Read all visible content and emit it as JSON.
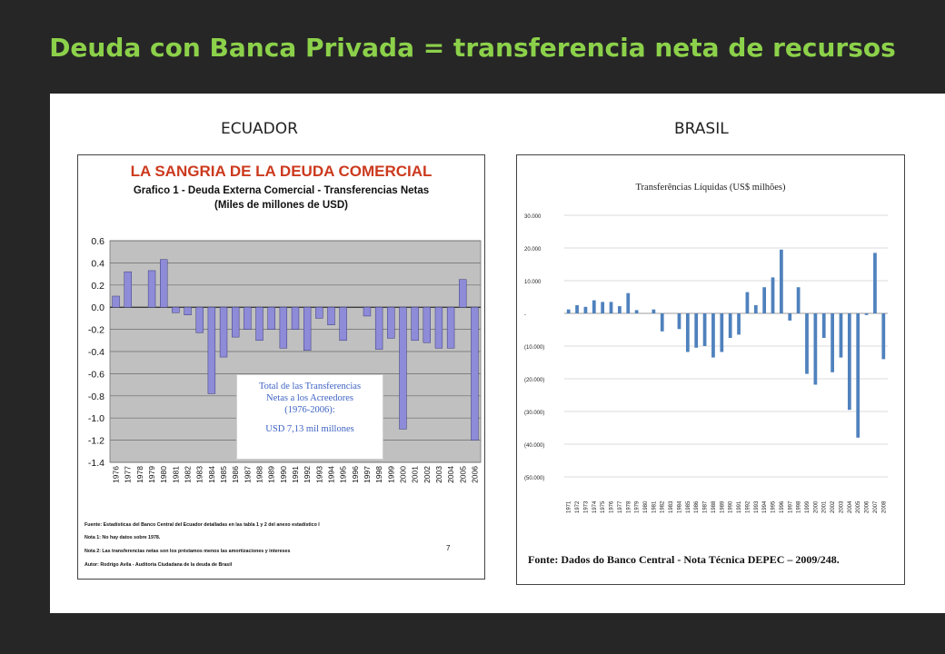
{
  "slide": {
    "title": "Deuda con Banca Privada = transferencia neta de recursos",
    "colors": {
      "background": "#262626",
      "title": "#8cd14a"
    }
  },
  "chart_data": [
    {
      "type": "bar",
      "country_label": "ECUADOR",
      "title": "LA SANGRIA DE LA DEUDA COMERCIAL",
      "subtitle_1": "Grafico 1 - Deuda Externa Comercial - Transferencias Netas",
      "subtitle_2": "(Miles de millones de USD)",
      "categories": [
        "1976",
        "1977",
        "1978",
        "1979",
        "1980",
        "1981",
        "1982",
        "1983",
        "1984",
        "1985",
        "1986",
        "1987",
        "1988",
        "1989",
        "1990",
        "1991",
        "1992",
        "1993",
        "1994",
        "1995",
        "1996",
        "1997",
        "1998",
        "1999",
        "2000",
        "2001",
        "2002",
        "2003",
        "2004",
        "2005",
        "2006"
      ],
      "values": [
        0.1,
        0.32,
        0,
        0.33,
        0.43,
        -0.05,
        -0.07,
        -0.23,
        -0.78,
        -0.45,
        -0.27,
        -0.2,
        -0.3,
        -0.2,
        -0.37,
        -0.2,
        -0.39,
        -0.1,
        -0.16,
        -0.3,
        0,
        -0.08,
        -0.38,
        -0.28,
        -1.1,
        -0.3,
        -0.32,
        -0.37,
        -0.37,
        0.25,
        -1.2
      ],
      "y_ticks": [
        "0.6",
        "0.4",
        "0.2",
        "0.0",
        "-0.2",
        "-0.4",
        "-0.6",
        "-0.8",
        "-1.0",
        "-1.2",
        "-1.4"
      ],
      "ylim": [
        -1.4,
        0.6
      ],
      "grid": true,
      "colors": {
        "bar": "#8e8cd8",
        "plot_bg": "#c0c0c0",
        "title": "#cc3a1e"
      },
      "annotation": [
        "Total de las Transferencias",
        "Netas a los Acreedores",
        "(1976-2006):",
        "USD 7,13 mil millones"
      ],
      "footnotes": [
        "Fuente: Estadísticas del Banco Central del Ecuador detalladas en las tabla 1 y 2 del anexo estadístico I",
        "Nota 1:  No hay datos sobre 1978.",
        "Nota 2:  Las transferencias netas son los préstamos menos las amortizaciones y intereses",
        "Autor: Rodrigo Avila - Auditoria Ciudadana de la deuda de Brasil"
      ],
      "page_number": "7"
    },
    {
      "type": "bar",
      "country_label": "BRASIL",
      "title": "Transferências Líquidas (US$ milhões)",
      "categories": [
        "1971",
        "1972",
        "1973",
        "1974",
        "1975",
        "1976",
        "1977",
        "1978",
        "1979",
        "1980",
        "1981",
        "1982",
        "1983",
        "1984",
        "1985",
        "1986",
        "1987",
        "1988",
        "1989",
        "1990",
        "1991",
        "1992",
        "1993",
        "1994",
        "1995",
        "1996",
        "1997",
        "1998",
        "1999",
        "2000",
        "2001",
        "2002",
        "2003",
        "2004",
        "2005",
        "2006",
        "2007",
        "2008"
      ],
      "values": [
        1200,
        2500,
        2000,
        4000,
        3500,
        3500,
        2200,
        6200,
        1000,
        0,
        1200,
        -5500,
        0,
        -4800,
        -11800,
        -10500,
        -10000,
        -13500,
        -11800,
        -7500,
        -6500,
        6500,
        2500,
        8000,
        11000,
        19500,
        -2200,
        8000,
        -18500,
        -21800,
        -7500,
        -18000,
        -13500,
        -29500,
        -38000,
        -500,
        18500,
        -14000
      ],
      "y_ticks": [
        "30.000",
        "20.000",
        "10.000",
        "-",
        "(10.000)",
        "(20.000)",
        "(30.000)",
        "(40.000)",
        "(50.000)"
      ],
      "ylim": [
        -50000,
        30000
      ],
      "grid": true,
      "colors": {
        "bar": "#4f81bd"
      },
      "source": "Fonte: Dados do Banco Central - Nota Técnica DEPEC – 2009/248."
    }
  ]
}
